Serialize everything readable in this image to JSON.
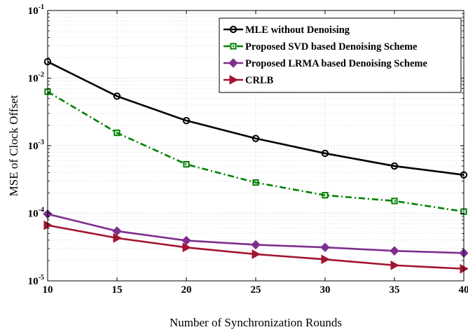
{
  "chart_data": {
    "type": "line",
    "xlabel": "Number of Synchronization Rounds",
    "ylabel": "MSE of Clock Offset",
    "x": [
      10,
      15,
      20,
      25,
      30,
      35,
      40
    ],
    "xlim": [
      10,
      40
    ],
    "ylim": [
      1e-05,
      0.1
    ],
    "yscale": "log",
    "grid": true,
    "legend_position": "top-right",
    "x_ticks": [
      "10",
      "15",
      "20",
      "25",
      "30",
      "35",
      "40"
    ],
    "y_ticks": [
      {
        "base": "10",
        "exp": "-5",
        "value": 1e-05
      },
      {
        "base": "10",
        "exp": "-4",
        "value": 0.0001
      },
      {
        "base": "10",
        "exp": "-3",
        "value": 0.001
      },
      {
        "base": "10",
        "exp": "-2",
        "value": 0.01
      },
      {
        "base": "10",
        "exp": "-1",
        "value": 0.1
      }
    ],
    "series": [
      {
        "name": "MLE without Denoising",
        "color": "#000000",
        "marker": "circle",
        "dash": "solid",
        "values": [
          0.0175,
          0.0054,
          0.00235,
          0.00128,
          0.00077,
          0.0005,
          0.00037
        ]
      },
      {
        "name": "Proposed SVD based Denoising Scheme",
        "color": "#008000",
        "marker": "square",
        "dash": "dashdot",
        "values": [
          0.0063,
          0.00155,
          0.00053,
          0.000285,
          0.000185,
          0.000152,
          0.000106
        ]
      },
      {
        "name": "Proposed LRMA based Denoising Scheme",
        "color": "#7E2F8E",
        "marker": "diamond",
        "dash": "solid",
        "values": [
          9.75e-05,
          5.45e-05,
          3.95e-05,
          3.42e-05,
          3.13e-05,
          2.78e-05,
          2.58e-05
        ]
      },
      {
        "name": "CRLB",
        "color": "#A2142F",
        "marker": "triangle-right",
        "dash": "solid",
        "values": [
          6.65e-05,
          4.3e-05,
          3.12e-05,
          2.48e-05,
          2.08e-05,
          1.7e-05,
          1.51e-05
        ]
      }
    ]
  }
}
